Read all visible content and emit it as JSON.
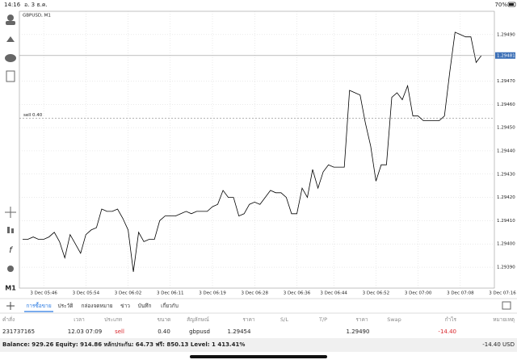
{
  "status_bar": {
    "time": "14:16",
    "date": "อ. 3 ธ.ค.",
    "battery": "70%"
  },
  "toolbar": {
    "timeframe": "M1"
  },
  "chart_data": {
    "type": "line",
    "title": "GBPUSD, M1",
    "color": "#000000",
    "grid": true,
    "values": [
      1.29402,
      1.29402,
      1.29403,
      1.29402,
      1.29402,
      1.29403,
      1.29405,
      1.29401,
      1.29394,
      1.29404,
      1.294,
      1.29396,
      1.29404,
      1.29406,
      1.29407,
      1.29415,
      1.29414,
      1.29414,
      1.29415,
      1.29411,
      1.29406,
      1.29388,
      1.29405,
      1.29401,
      1.29402,
      1.29402,
      1.2941,
      1.29412,
      1.29412,
      1.29412,
      1.29413,
      1.29414,
      1.29413,
      1.29414,
      1.29414,
      1.29414,
      1.29416,
      1.29417,
      1.29423,
      1.2942,
      1.2942,
      1.29412,
      1.29413,
      1.29417,
      1.29418,
      1.29417,
      1.2942,
      1.29423,
      1.29422,
      1.29422,
      1.2942,
      1.29413,
      1.29413,
      1.29424,
      1.2942,
      1.29432,
      1.29424,
      1.29431,
      1.29434,
      1.29433,
      1.29433,
      1.29433,
      1.29466,
      1.29465,
      1.29464,
      1.29452,
      1.29442,
      1.29427,
      1.29434,
      1.29434,
      1.29463,
      1.29465,
      1.29462,
      1.29468,
      1.29455,
      1.29455,
      1.29453,
      1.29453,
      1.29453,
      1.29453,
      1.29455,
      1.29474,
      1.29491,
      1.2949,
      1.29489,
      1.29489,
      1.29478,
      1.29481
    ],
    "xlim": [
      0,
      89
    ],
    "xticks": [
      {
        "value": 4,
        "label": "3 Dec 05:46"
      },
      {
        "value": 12,
        "label": "3 Dec 05:54"
      },
      {
        "value": 20,
        "label": "3 Dec 06:02"
      },
      {
        "value": 28,
        "label": "3 Dec 06:11"
      },
      {
        "value": 36,
        "label": "3 Dec 06:19"
      },
      {
        "value": 44,
        "label": "3 Dec 06:28"
      },
      {
        "value": 52,
        "label": "3 Dec 06:36"
      },
      {
        "value": 59,
        "label": "3 Dec 06:44"
      },
      {
        "value": 67,
        "label": "3 Dec 06:52"
      },
      {
        "value": 75,
        "label": "3 Dec 07:00"
      },
      {
        "value": 83,
        "label": "3 Dec 07:08"
      },
      {
        "value": 91,
        "label": "3 Dec 07:16"
      }
    ],
    "ylim": [
      1.29381,
      1.295
    ],
    "yticks": [
      {
        "value": 1.2939,
        "label": "1.29390"
      },
      {
        "value": 1.294,
        "label": "1.29400"
      },
      {
        "value": 1.2941,
        "label": "1.29410"
      },
      {
        "value": 1.2942,
        "label": "1.29420"
      },
      {
        "value": 1.2943,
        "label": "1.29430"
      },
      {
        "value": 1.2944,
        "label": "1.29440"
      },
      {
        "value": 1.2945,
        "label": "1.29450"
      },
      {
        "value": 1.2946,
        "label": "1.29460"
      },
      {
        "value": 1.2947,
        "label": "1.29470"
      },
      {
        "value": 1.2949,
        "label": "1.29490"
      }
    ],
    "order_line": {
      "value": 1.29454,
      "label": "sell 0.40"
    },
    "current_price": 1.29481
  },
  "tabs": [
    "การซื้อขาย",
    "ประวัติ",
    "กล่องจดหมาย",
    "ข่าว",
    "บันทึก",
    "เกี่ยวกับ"
  ],
  "table": {
    "header": [
      "คำสั่ง",
      "เวลา",
      "ประเภท",
      "ขนาด",
      "สัญลักษณ์",
      "ราคา",
      "S/L",
      "T/P",
      "ราคา",
      "Swap",
      "กำไร",
      "หมายเหตุ"
    ],
    "row": {
      "order": "231737165",
      "time": "12.03 07:09",
      "type": "sell",
      "size": "0.40",
      "symbol": "gbpusd",
      "open_price": "1.29454",
      "price": "1.29490",
      "profit": "-14.40"
    }
  },
  "footer": {
    "summary": "Balance: 929.26 Equity: 914.86 หลักประกัน: 64.73 ฟรี: 850.13 Level: 1 413.41%",
    "total": "-14.40  USD"
  }
}
